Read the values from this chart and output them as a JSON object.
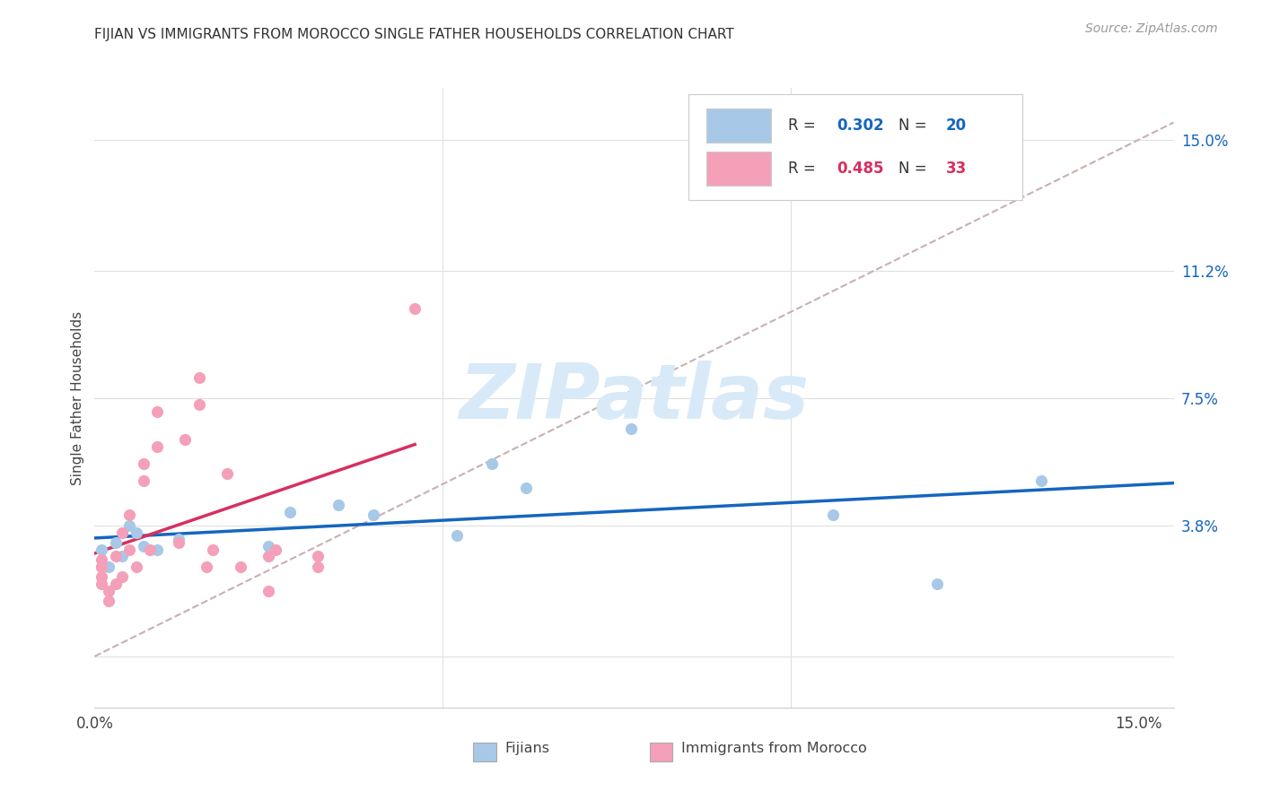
{
  "title": "FIJIAN VS IMMIGRANTS FROM MOROCCO SINGLE FATHER HOUSEHOLDS CORRELATION CHART",
  "source": "Source: ZipAtlas.com",
  "ylabel": "Single Father Households",
  "xlim": [
    0.0,
    0.155
  ],
  "ylim": [
    -0.015,
    0.165
  ],
  "right_ytick_vals": [
    0.0,
    0.038,
    0.075,
    0.112,
    0.15
  ],
  "right_ytick_labels": [
    "",
    "3.8%",
    "7.5%",
    "11.2%",
    "15.0%"
  ],
  "xtick_vals": [
    0.0,
    0.05,
    0.1,
    0.15
  ],
  "xtick_labels": [
    "0.0%",
    "",
    "",
    "15.0%"
  ],
  "fijian_color": "#a8c8e8",
  "morocco_color": "#f4a0b8",
  "fijian_line_color": "#1565c0",
  "morocco_line_color": "#d63060",
  "diagonal_color": "#c8b0b0",
  "R_fijian": "0.302",
  "N_fijian": "20",
  "R_morocco": "0.485",
  "N_morocco": "33",
  "fijian_x": [
    0.001,
    0.002,
    0.003,
    0.004,
    0.005,
    0.006,
    0.007,
    0.009,
    0.012,
    0.025,
    0.028,
    0.035,
    0.04,
    0.052,
    0.057,
    0.062,
    0.077,
    0.106,
    0.121,
    0.136
  ],
  "fijian_y": [
    0.031,
    0.026,
    0.033,
    0.029,
    0.038,
    0.036,
    0.032,
    0.031,
    0.034,
    0.032,
    0.042,
    0.044,
    0.041,
    0.035,
    0.056,
    0.049,
    0.066,
    0.041,
    0.021,
    0.051
  ],
  "morocco_x": [
    0.001,
    0.001,
    0.001,
    0.001,
    0.001,
    0.002,
    0.002,
    0.003,
    0.003,
    0.004,
    0.004,
    0.005,
    0.005,
    0.006,
    0.007,
    0.007,
    0.008,
    0.009,
    0.009,
    0.012,
    0.013,
    0.015,
    0.015,
    0.016,
    0.017,
    0.019,
    0.021,
    0.025,
    0.025,
    0.026,
    0.032,
    0.032,
    0.046
  ],
  "morocco_y": [
    0.026,
    0.021,
    0.023,
    0.026,
    0.028,
    0.016,
    0.019,
    0.021,
    0.029,
    0.023,
    0.036,
    0.031,
    0.041,
    0.026,
    0.051,
    0.056,
    0.031,
    0.061,
    0.071,
    0.033,
    0.063,
    0.073,
    0.081,
    0.026,
    0.031,
    0.053,
    0.026,
    0.029,
    0.019,
    0.031,
    0.026,
    0.029,
    0.101
  ],
  "watermark_text": "ZIPatlas",
  "watermark_color": "#d8eaf8",
  "background_color": "#ffffff",
  "grid_color": "#e0e0e0"
}
